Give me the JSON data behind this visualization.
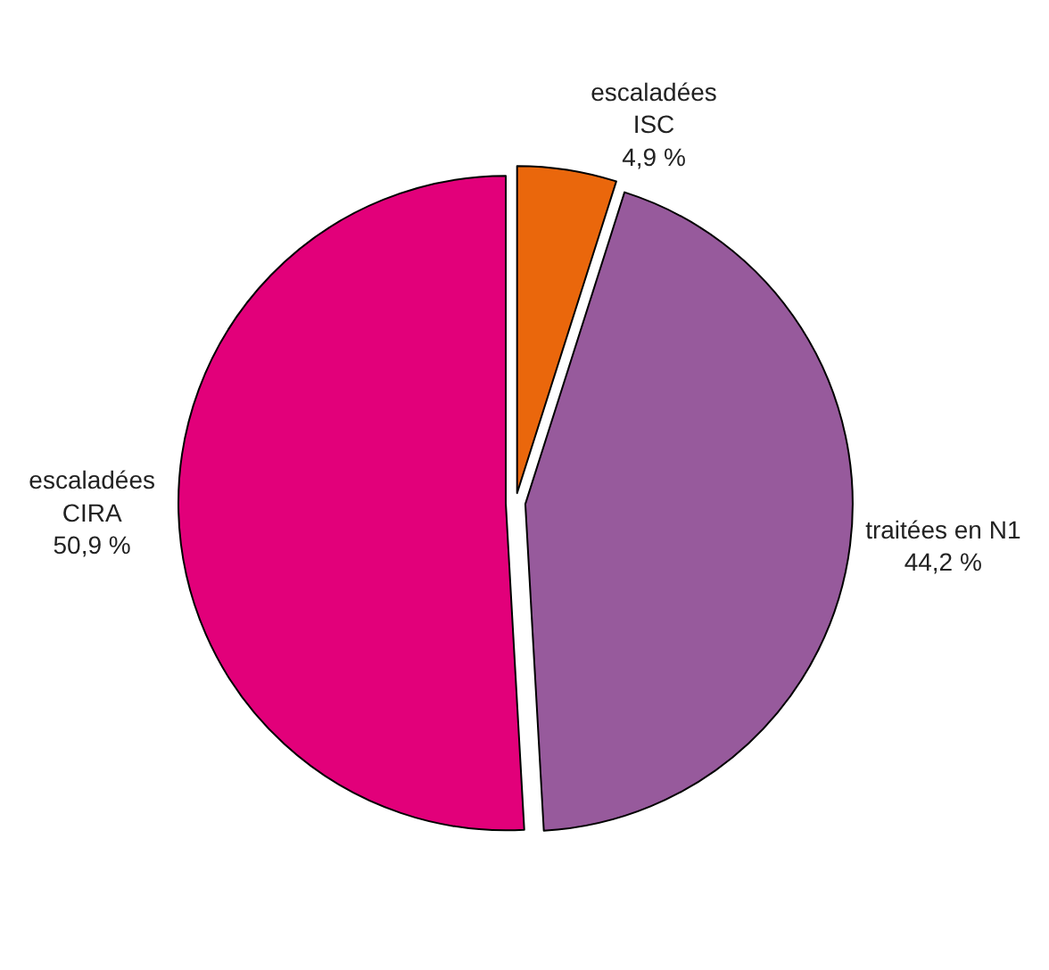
{
  "chart_data": {
    "type": "pie",
    "categories": [
      "escaladées\nISC",
      "traitées en N1",
      "escaladées\nCIRA"
    ],
    "values": [
      4.9,
      44.2,
      50.9
    ],
    "value_labels": [
      "4,9 %",
      "44,2 %",
      "50,9 %"
    ],
    "colors": [
      "#ea670c",
      "#975a9c",
      "#e2007a"
    ],
    "legend": false
  }
}
